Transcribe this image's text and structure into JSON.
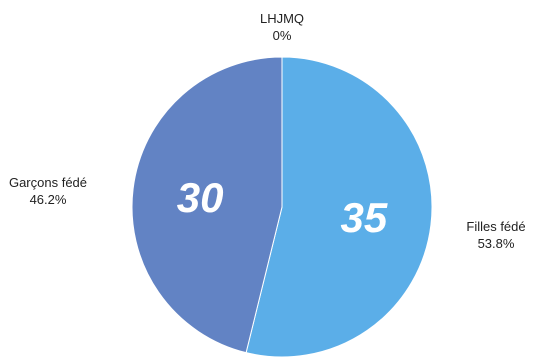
{
  "chart_data": {
    "type": "pie",
    "title": "",
    "slices": [
      {
        "label": "LHJMQ",
        "value": 0,
        "percent": "0%",
        "color": "#5BAEE8"
      },
      {
        "label": "Filles fédé",
        "value": 35,
        "percent": "53.8%",
        "color": "#5BAEE8"
      },
      {
        "label": "Garçons fédé",
        "value": 30,
        "percent": "46.2%",
        "color": "#6283C4"
      }
    ],
    "data_labels": [
      "35",
      "30"
    ],
    "legend": "none"
  }
}
